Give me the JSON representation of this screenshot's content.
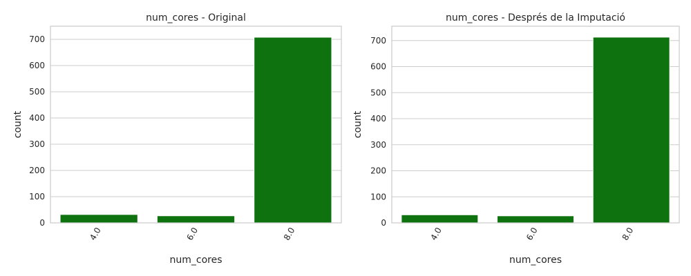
{
  "chart_data": [
    {
      "type": "bar",
      "title": "num_cores - Original",
      "xlabel": "num_cores",
      "ylabel": "count",
      "categories": [
        "4.0",
        "6.0",
        "8.0"
      ],
      "values": [
        32,
        27,
        708
      ],
      "ylim": [
        0,
        750
      ],
      "yticks": [
        0,
        100,
        200,
        300,
        400,
        500,
        600,
        700
      ],
      "bar_color": "#0e720e",
      "grid": "horizontal",
      "xtick_rotation": 60
    },
    {
      "type": "bar",
      "title": "num_cores - Després de la Imputació",
      "xlabel": "num_cores",
      "ylabel": "count",
      "categories": [
        "4.0",
        "6.0",
        "8.0"
      ],
      "values": [
        31,
        27,
        713
      ],
      "ylim": [
        0,
        755
      ],
      "yticks": [
        0,
        100,
        200,
        300,
        400,
        500,
        600,
        700
      ],
      "bar_color": "#0e720e",
      "grid": "horizontal",
      "xtick_rotation": 60
    }
  ]
}
